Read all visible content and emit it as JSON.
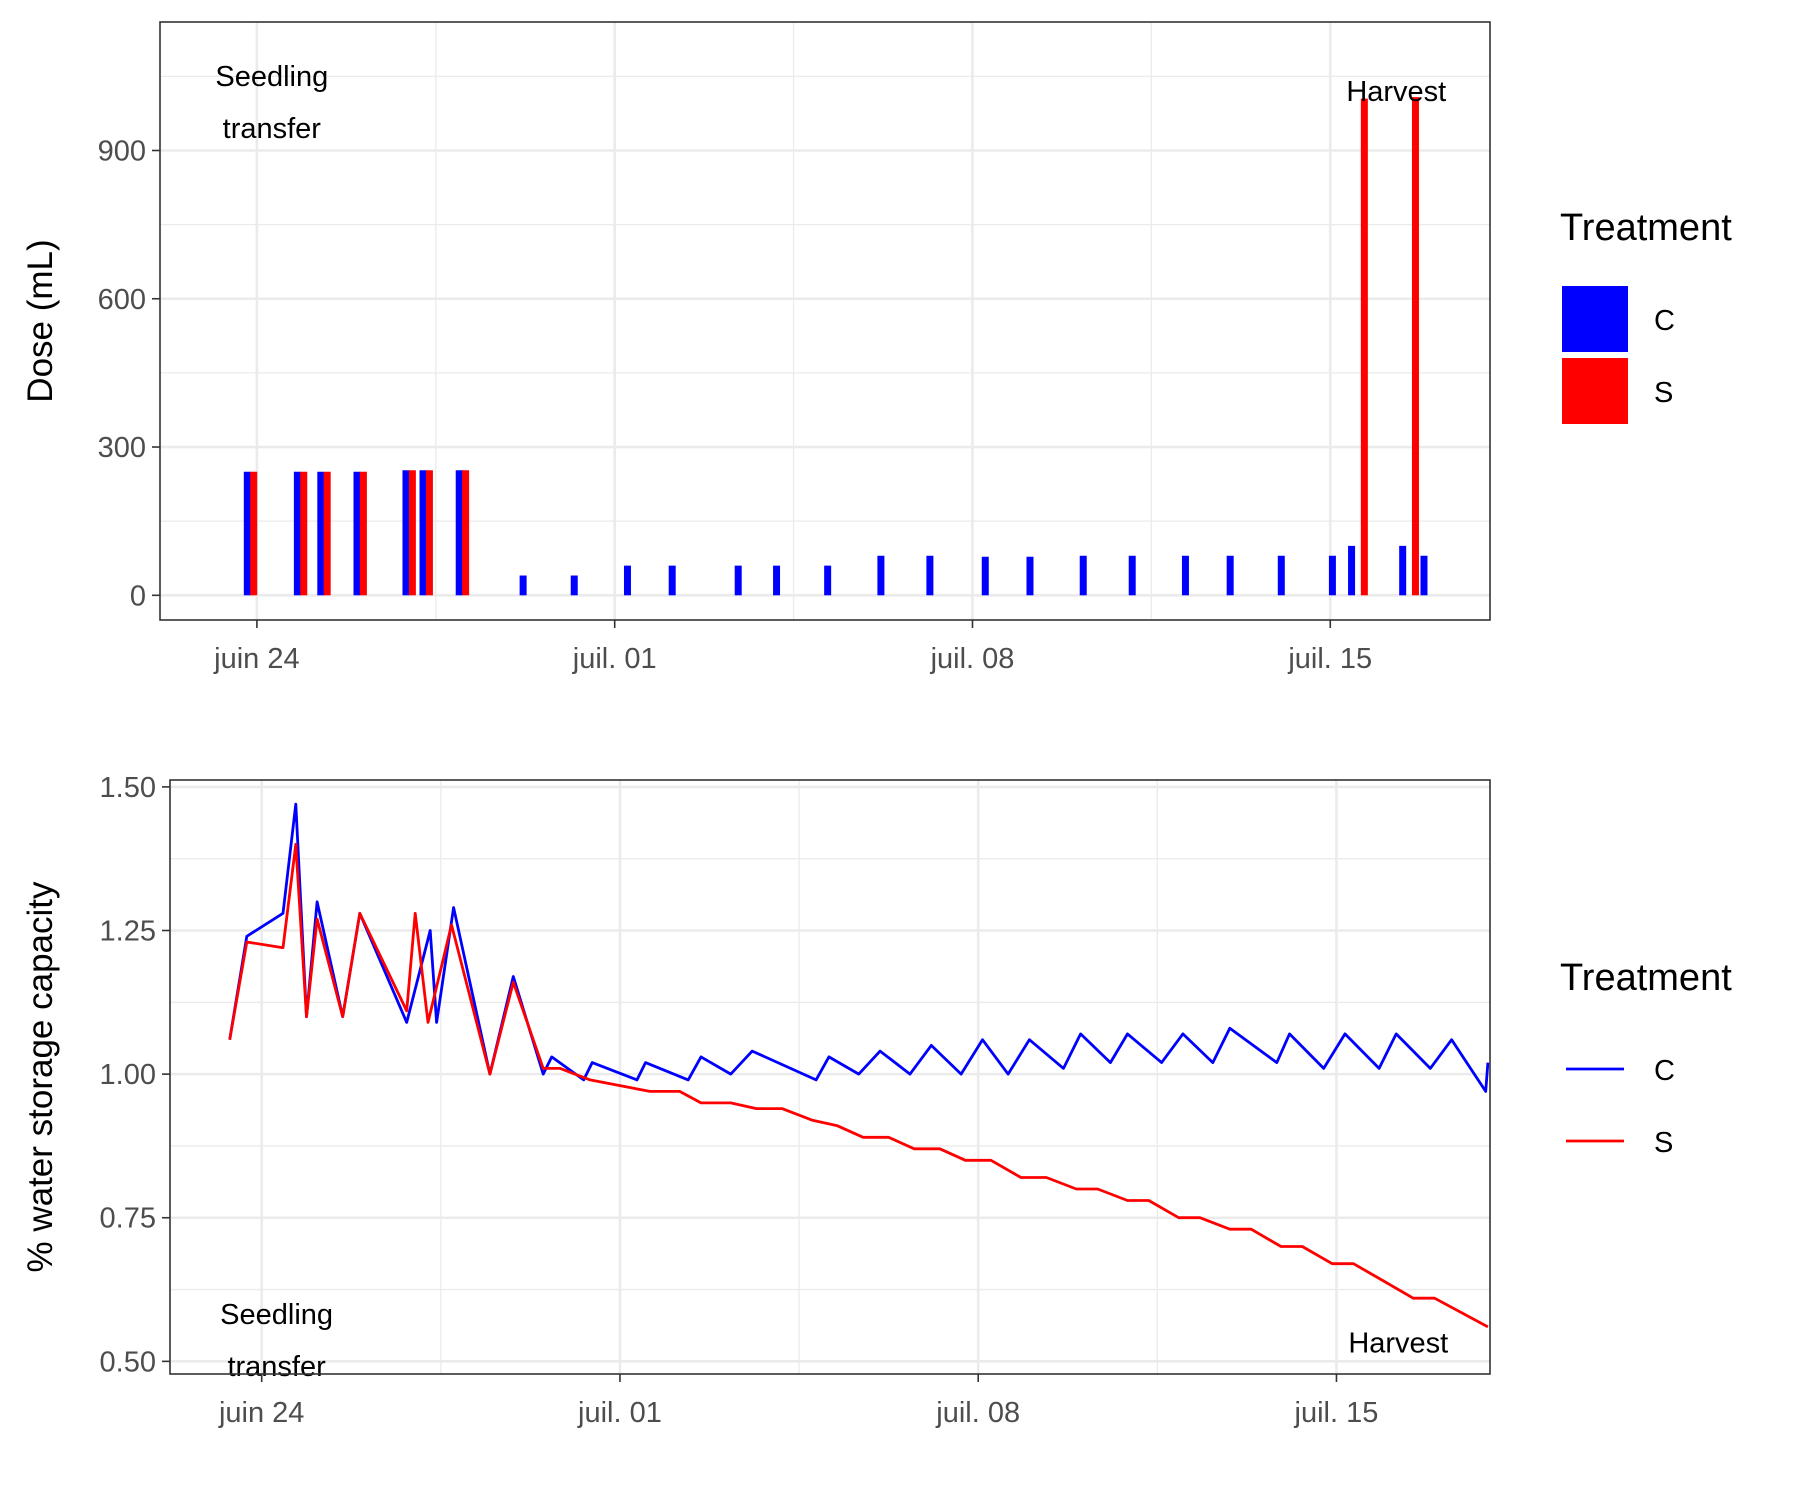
{
  "chart_data": [
    {
      "type": "bar",
      "title": "",
      "xlabel": "",
      "ylabel": "Dose (mL)",
      "x_ticks": [
        {
          "date": "2020-06-24",
          "label": "juin 24"
        },
        {
          "date": "2020-07-01",
          "label": "juil. 01"
        },
        {
          "date": "2020-07-08",
          "label": "juil. 08"
        },
        {
          "date": "2020-07-15",
          "label": "juil. 15"
        }
      ],
      "xlim": [
        "2020-06-22T02:30",
        "2020-07-18T03:00"
      ],
      "ylim": [
        -50,
        1160
      ],
      "y_ticks": [
        0,
        300,
        600,
        900
      ],
      "grid": true,
      "legend": {
        "title": "Treatment",
        "position": "right",
        "entries": [
          {
            "name": "C",
            "color": "#0000FF"
          },
          {
            "name": "S",
            "color": "#FF0000"
          }
        ]
      },
      "annotations": [
        {
          "lines": [
            "Seedling",
            "transfer"
          ],
          "date": "2020-06-24T07:00",
          "y": 1030
        },
        {
          "lines": [
            "Harvest"
          ],
          "date": "2020-07-16T07:00",
          "y": 1000
        }
      ],
      "series": [
        {
          "name": "C",
          "color": "#0000FF",
          "points": [
            [
              "2020-06-23T19:30",
              250
            ],
            [
              "2020-06-24T19:00",
              250
            ],
            [
              "2020-06-25T06:00",
              250
            ],
            [
              "2020-06-25T23:00",
              250
            ],
            [
              "2020-06-26T22:00",
              253
            ],
            [
              "2020-06-27T06:00",
              253
            ],
            [
              "2020-06-27T23:00",
              253
            ],
            [
              "2020-06-29T05:00",
              40
            ],
            [
              "2020-06-30T05:00",
              40
            ],
            [
              "2020-07-01T06:00",
              60
            ],
            [
              "2020-07-02T03:00",
              60
            ],
            [
              "2020-07-03T10:00",
              60
            ],
            [
              "2020-07-04T04:00",
              60
            ],
            [
              "2020-07-05T04:00",
              60
            ],
            [
              "2020-07-06T05:00",
              80
            ],
            [
              "2020-07-07T04:00",
              80
            ],
            [
              "2020-07-08T06:00",
              78
            ],
            [
              "2020-07-09T03:00",
              78
            ],
            [
              "2020-07-10T04:00",
              80
            ],
            [
              "2020-07-11T03:00",
              80
            ],
            [
              "2020-07-12T04:00",
              80
            ],
            [
              "2020-07-13T01:00",
              80
            ],
            [
              "2020-07-14T01:00",
              80
            ],
            [
              "2020-07-15T01:00",
              80
            ],
            [
              "2020-07-15T10:00",
              100
            ],
            [
              "2020-07-16T10:00",
              100
            ],
            [
              "2020-07-16T20:00",
              80
            ]
          ]
        },
        {
          "name": "S",
          "color": "#FF0000",
          "points": [
            [
              "2020-06-23T22:30",
              250
            ],
            [
              "2020-06-24T22:00",
              250
            ],
            [
              "2020-06-25T09:00",
              250
            ],
            [
              "2020-06-26T02:00",
              250
            ],
            [
              "2020-06-27T01:00",
              253
            ],
            [
              "2020-06-27T09:00",
              253
            ],
            [
              "2020-06-28T02:00",
              253
            ],
            [
              "2020-07-15T16:00",
              1005
            ],
            [
              "2020-07-16T16:00",
              1008
            ]
          ]
        }
      ]
    },
    {
      "type": "line",
      "title": "",
      "xlabel": "",
      "ylabel": "% water storage capacity",
      "x_ticks": [
        {
          "date": "2020-06-24",
          "label": "juin 24"
        },
        {
          "date": "2020-07-01",
          "label": "juil. 01"
        },
        {
          "date": "2020-07-08",
          "label": "juil. 08"
        },
        {
          "date": "2020-07-15",
          "label": "juil. 15"
        }
      ],
      "xlim": [
        "2020-06-22T05:00",
        "2020-07-18T00:00"
      ],
      "ylim": [
        0.478,
        1.512
      ],
      "y_ticks": [
        "0.50",
        "0.75",
        "1.00",
        "1.25",
        "1.50"
      ],
      "grid": true,
      "legend": {
        "title": "Treatment",
        "position": "right",
        "entries": [
          {
            "name": "C",
            "color": "#0000FF"
          },
          {
            "name": "S",
            "color": "#FF0000"
          }
        ]
      },
      "annotations": [
        {
          "lines": [
            "Seedling",
            "transfer"
          ],
          "date": "2020-06-24T07:00",
          "y": 0.565
        },
        {
          "lines": [
            "Harvest"
          ],
          "date": "2020-07-16T05:00",
          "y": 0.515
        }
      ],
      "series": [
        {
          "name": "C",
          "color": "#0000FF",
          "points": [
            [
              "2020-06-23T09:00",
              1.06
            ],
            [
              "2020-06-23T17:00",
              1.24
            ],
            [
              "2020-06-24T10:00",
              1.28
            ],
            [
              "2020-06-24T16:00",
              1.47
            ],
            [
              "2020-06-24T21:00",
              1.1
            ],
            [
              "2020-06-25T02:00",
              1.3
            ],
            [
              "2020-06-25T14:00",
              1.1
            ],
            [
              "2020-06-25T22:00",
              1.28
            ],
            [
              "2020-06-26T20:00",
              1.09
            ],
            [
              "2020-06-27T07:00",
              1.25
            ],
            [
              "2020-06-27T10:00",
              1.09
            ],
            [
              "2020-06-27T18:00",
              1.29
            ],
            [
              "2020-06-28T11:00",
              1.0
            ],
            [
              "2020-06-28T22:00",
              1.17
            ],
            [
              "2020-06-29T12:00",
              1.0
            ],
            [
              "2020-06-29T16:00",
              1.03
            ],
            [
              "2020-06-30T07:00",
              0.99
            ],
            [
              "2020-06-30T11:00",
              1.02
            ],
            [
              "2020-07-01T08:00",
              0.99
            ],
            [
              "2020-07-01T12:00",
              1.02
            ],
            [
              "2020-07-02T08:00",
              0.99
            ],
            [
              "2020-07-02T14:00",
              1.03
            ],
            [
              "2020-07-03T04:00",
              1.0
            ],
            [
              "2020-07-03T14:00",
              1.04
            ],
            [
              "2020-07-04T20:00",
              0.99
            ],
            [
              "2020-07-05T02:00",
              1.03
            ],
            [
              "2020-07-05T16:00",
              1.0
            ],
            [
              "2020-07-06T02:00",
              1.04
            ],
            [
              "2020-07-06T16:00",
              1.0
            ],
            [
              "2020-07-07T02:00",
              1.05
            ],
            [
              "2020-07-07T16:00",
              1.0
            ],
            [
              "2020-07-08T02:00",
              1.06
            ],
            [
              "2020-07-08T14:00",
              1.0
            ],
            [
              "2020-07-09T00:00",
              1.06
            ],
            [
              "2020-07-09T16:00",
              1.01
            ],
            [
              "2020-07-10T00:00",
              1.07
            ],
            [
              "2020-07-10T14:00",
              1.02
            ],
            [
              "2020-07-10T22:00",
              1.07
            ],
            [
              "2020-07-11T14:00",
              1.02
            ],
            [
              "2020-07-12T00:00",
              1.07
            ],
            [
              "2020-07-12T14:00",
              1.02
            ],
            [
              "2020-07-12T22:00",
              1.08
            ],
            [
              "2020-07-13T20:00",
              1.02
            ],
            [
              "2020-07-14T02:00",
              1.07
            ],
            [
              "2020-07-14T18:00",
              1.01
            ],
            [
              "2020-07-15T04:00",
              1.07
            ],
            [
              "2020-07-15T20:00",
              1.01
            ],
            [
              "2020-07-16T04:00",
              1.07
            ],
            [
              "2020-07-16T20:00",
              1.01
            ],
            [
              "2020-07-17T06:00",
              1.06
            ],
            [
              "2020-07-17T22:00",
              0.97
            ],
            [
              "2020-07-17T23:00",
              1.02
            ]
          ]
        },
        {
          "name": "S",
          "color": "#FF0000",
          "points": [
            [
              "2020-06-23T09:00",
              1.06
            ],
            [
              "2020-06-23T17:00",
              1.23
            ],
            [
              "2020-06-24T10:00",
              1.22
            ],
            [
              "2020-06-24T16:00",
              1.4
            ],
            [
              "2020-06-24T21:00",
              1.1
            ],
            [
              "2020-06-25T02:00",
              1.27
            ],
            [
              "2020-06-25T14:00",
              1.1
            ],
            [
              "2020-06-25T22:00",
              1.28
            ],
            [
              "2020-06-26T20:00",
              1.11
            ],
            [
              "2020-06-27T00:00",
              1.28
            ],
            [
              "2020-06-27T06:00",
              1.09
            ],
            [
              "2020-06-27T17:00",
              1.26
            ],
            [
              "2020-06-28T11:00",
              1.0
            ],
            [
              "2020-06-28T22:00",
              1.16
            ],
            [
              "2020-06-29T12:00",
              1.01
            ],
            [
              "2020-06-29T20:00",
              1.01
            ],
            [
              "2020-06-30T10:00",
              0.99
            ],
            [
              "2020-07-01T00:00",
              0.98
            ],
            [
              "2020-07-01T14:00",
              0.97
            ],
            [
              "2020-07-02T04:00",
              0.97
            ],
            [
              "2020-07-02T14:00",
              0.95
            ],
            [
              "2020-07-03T04:00",
              0.95
            ],
            [
              "2020-07-03T16:00",
              0.94
            ],
            [
              "2020-07-04T04:00",
              0.94
            ],
            [
              "2020-07-04T18:00",
              0.92
            ],
            [
              "2020-07-05T06:00",
              0.91
            ],
            [
              "2020-07-05T18:00",
              0.89
            ],
            [
              "2020-07-06T06:00",
              0.89
            ],
            [
              "2020-07-06T18:00",
              0.87
            ],
            [
              "2020-07-07T06:00",
              0.87
            ],
            [
              "2020-07-07T18:00",
              0.85
            ],
            [
              "2020-07-08T06:00",
              0.85
            ],
            [
              "2020-07-08T20:00",
              0.82
            ],
            [
              "2020-07-09T08:00",
              0.82
            ],
            [
              "2020-07-09T22:00",
              0.8
            ],
            [
              "2020-07-10T08:00",
              0.8
            ],
            [
              "2020-07-10T22:00",
              0.78
            ],
            [
              "2020-07-11T08:00",
              0.78
            ],
            [
              "2020-07-11T22:00",
              0.75
            ],
            [
              "2020-07-12T08:00",
              0.75
            ],
            [
              "2020-07-12T22:00",
              0.73
            ],
            [
              "2020-07-13T08:00",
              0.73
            ],
            [
              "2020-07-13T22:00",
              0.7
            ],
            [
              "2020-07-14T08:00",
              0.7
            ],
            [
              "2020-07-14T22:00",
              0.67
            ],
            [
              "2020-07-15T08:00",
              0.67
            ],
            [
              "2020-07-15T22:00",
              0.64
            ],
            [
              "2020-07-16T12:00",
              0.61
            ],
            [
              "2020-07-16T22:00",
              0.61
            ],
            [
              "2020-07-17T23:00",
              0.56
            ]
          ]
        }
      ]
    }
  ]
}
